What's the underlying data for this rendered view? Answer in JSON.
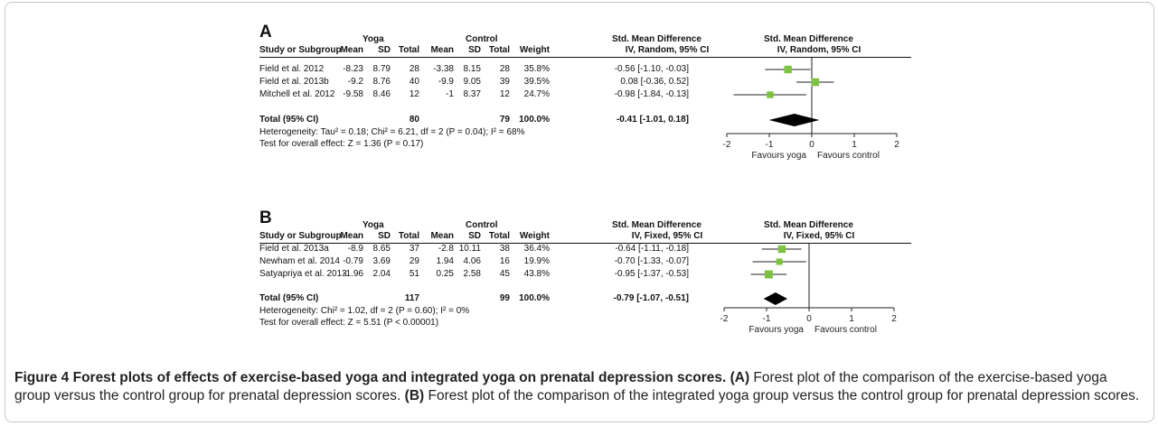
{
  "caption": {
    "title": "Figure 4 Forest plots of effects of exercise-based yoga and integrated yoga on prenatal depression scores.",
    "a_tag": "(A)",
    "a_text": " Forest plot of the comparison of the exercise-based yoga group versus the control group for prenatal depression scores. ",
    "b_tag": "(B)",
    "b_text": " Forest plot of the comparison of the integrated yoga group versus the control group for prenatal depression scores."
  },
  "headers": {
    "yoga": "Yoga",
    "control": "Control",
    "smd": "Std. Mean Difference",
    "study": "Study or Subgroup",
    "mean": "Mean",
    "sd": "SD",
    "total": "Total",
    "weight": "Weight"
  },
  "chart_data": [
    {
      "type": "forest",
      "panel": "A",
      "method_label": "IV, Random, 95% CI",
      "studies": [
        {
          "study": "Field et al. 2012",
          "yoga_mean": "-8.23",
          "yoga_sd": "8.79",
          "yoga_total": "28",
          "control_mean": "-3.38",
          "control_sd": "8.15",
          "control_total": "28",
          "weight": "35.8%",
          "ci_text": "-0.56 [-1.10, -0.03]",
          "estimate": -0.56,
          "lower": -1.1,
          "upper": -0.03,
          "weight_pct": 35.8
        },
        {
          "study": "Field et al. 2013b",
          "yoga_mean": "-9.2",
          "yoga_sd": "8.76",
          "yoga_total": "40",
          "control_mean": "-9.9",
          "control_sd": "9.05",
          "control_total": "39",
          "weight": "39.5%",
          "ci_text": "0.08 [-0.36, 0.52]",
          "estimate": 0.08,
          "lower": -0.36,
          "upper": 0.52,
          "weight_pct": 39.5
        },
        {
          "study": "Mitchell et al. 2012",
          "yoga_mean": "-9.58",
          "yoga_sd": "8.46",
          "yoga_total": "12",
          "control_mean": "-1",
          "control_sd": "8.37",
          "control_total": "12",
          "weight": "24.7%",
          "ci_text": "-0.98 [-1.84, -0.13]",
          "estimate": -0.98,
          "lower": -1.84,
          "upper": -0.13,
          "weight_pct": 24.7
        }
      ],
      "total": {
        "label": "Total (95% CI)",
        "yoga_total": "80",
        "control_total": "79",
        "weight": "100.0%",
        "ci_text": "-0.41 [-1.01, 0.18]",
        "estimate": -0.41,
        "lower": -1.01,
        "upper": 0.18
      },
      "heterogeneity": "Heterogeneity: Tau² = 0.18; Chi² = 6.21, df = 2 (P = 0.04); I² = 68%",
      "overall_effect": "Test for overall effect: Z = 1.36 (P = 0.17)",
      "xlim": [
        -2,
        2
      ],
      "ticks": [
        "-2",
        "-1",
        "0",
        "1",
        "2"
      ],
      "favours_left": "Favours yoga",
      "favours_right": "Favours control",
      "marker_color": "#7dc242"
    },
    {
      "type": "forest",
      "panel": "B",
      "method_label": "IV, Fixed, 95% CI",
      "studies": [
        {
          "study": "Field et al. 2013a",
          "yoga_mean": "-8.9",
          "yoga_sd": "8.65",
          "yoga_total": "37",
          "control_mean": "-2.8",
          "control_sd": "10.11",
          "control_total": "38",
          "weight": "36.4%",
          "ci_text": "-0.64 [-1.11, -0.18]",
          "estimate": -0.64,
          "lower": -1.11,
          "upper": -0.18,
          "weight_pct": 36.4
        },
        {
          "study": "Newham et al. 2014",
          "yoga_mean": "-0.79",
          "yoga_sd": "3.69",
          "yoga_total": "29",
          "control_mean": "1.94",
          "control_sd": "4.06",
          "control_total": "16",
          "weight": "19.9%",
          "ci_text": "-0.70 [-1.33, -0.07]",
          "estimate": -0.7,
          "lower": -1.33,
          "upper": -0.07,
          "weight_pct": 19.9
        },
        {
          "study": "Satyapriya et al. 2013",
          "yoga_mean": "-1.96",
          "yoga_sd": "2.04",
          "yoga_total": "51",
          "control_mean": "0.25",
          "control_sd": "2.58",
          "control_total": "45",
          "weight": "43.8%",
          "ci_text": "-0.95 [-1.37, -0.53]",
          "estimate": -0.95,
          "lower": -1.37,
          "upper": -0.53,
          "weight_pct": 43.8
        }
      ],
      "total": {
        "label": "Total (95% CI)",
        "yoga_total": "117",
        "control_total": "99",
        "weight": "100.0%",
        "ci_text": "-0.79 [-1.07, -0.51]",
        "estimate": -0.79,
        "lower": -1.07,
        "upper": -0.51
      },
      "heterogeneity": "Heterogeneity: Chi² = 1.02, df = 2 (P = 0.60); I² = 0%",
      "overall_effect": "Test for overall effect: Z = 5.51 (P < 0.00001)",
      "xlim": [
        -2,
        2
      ],
      "ticks": [
        "-2",
        "-1",
        "0",
        "1",
        "2"
      ],
      "favours_left": "Favours yoga",
      "favours_right": "Favours control",
      "marker_color": "#7dc242"
    }
  ]
}
